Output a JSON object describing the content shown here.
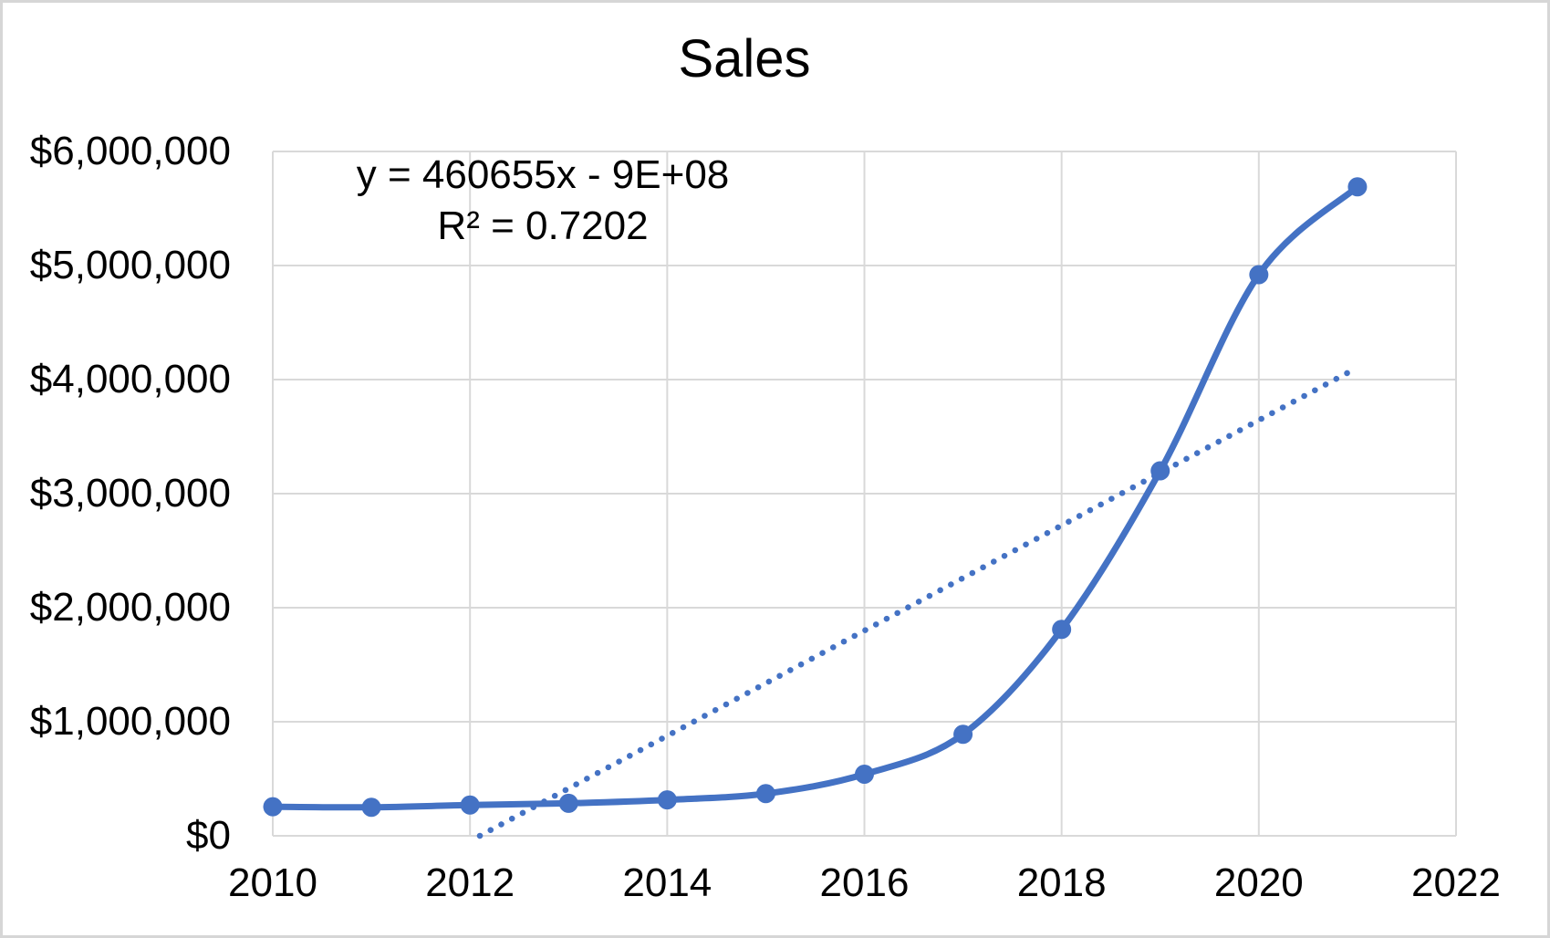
{
  "title": "Sales",
  "annotations": {
    "equation": "y = 460655x - 9E+08",
    "r_squared": "R² = 0.7202"
  },
  "chart_data": {
    "type": "line",
    "title": "Sales",
    "x": [
      2010,
      2011,
      2012,
      2013,
      2014,
      2015,
      2016,
      2017,
      2018,
      2019,
      2020,
      2021
    ],
    "series": [
      {
        "name": "Sales",
        "values": [
          255000,
          250000,
          270000,
          285000,
          315000,
          370000,
          540000,
          890000,
          1810000,
          3200000,
          4920000,
          5690000
        ]
      }
    ],
    "trendline": {
      "style": "dotted-linear",
      "equation": "y = 460655x - 9E+08",
      "r_squared": 0.7202,
      "x_start": 2012.1,
      "y_start": 0,
      "x_end": 2021,
      "y_end": 4105000
    },
    "x_tick_labels": [
      "2010",
      "2012",
      "2014",
      "2016",
      "2018",
      "2020",
      "2022"
    ],
    "y_tick_labels": [
      "$0",
      "$1,000,000",
      "$2,000,000",
      "$3,000,000",
      "$4,000,000",
      "$5,000,000",
      "$6,000,000"
    ],
    "xlim": [
      2010,
      2022
    ],
    "ylim": [
      0,
      6000000
    ],
    "grid": true,
    "legend": false,
    "colors": {
      "series": "#4472C4",
      "gridline": "#D9D9D9",
      "text": "#000000",
      "chart_border": "#D6D6D6",
      "background": "#FFFFFF"
    }
  }
}
